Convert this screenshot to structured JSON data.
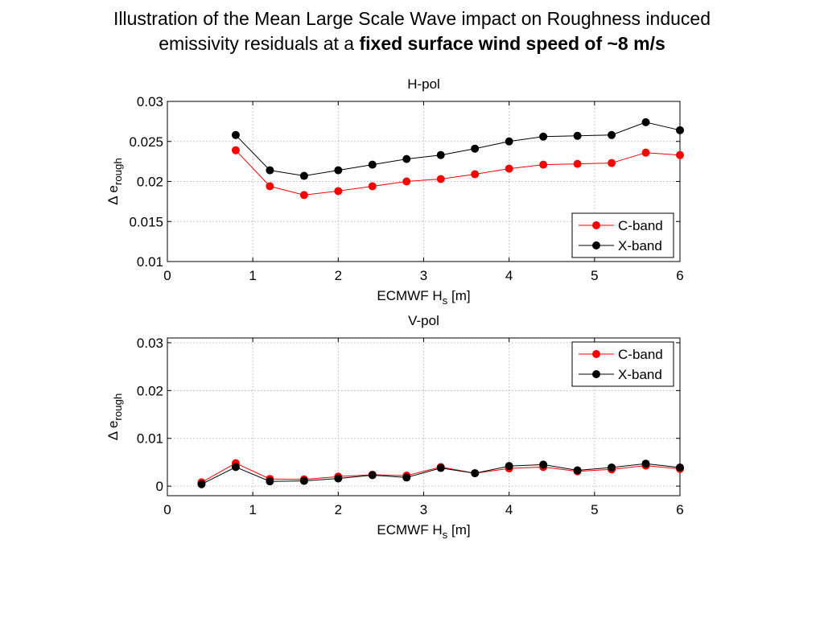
{
  "slide": {
    "title_line1": "Illustration of the Mean Large Scale Wave impact on Roughness induced",
    "title_line2_plain": "emissivity residuals at a ",
    "title_line2_bold": "fixed surface wind speed of ~8 m/s"
  },
  "chart_data": [
    {
      "type": "line",
      "title": "H-pol",
      "xlabel": "ECMWF H_s [m]",
      "ylabel": "Δ e_rough",
      "xlim": [
        0,
        6
      ],
      "ylim": [
        0.01,
        0.03
      ],
      "xticks": [
        0,
        1,
        2,
        3,
        4,
        5,
        6
      ],
      "yticks": [
        0.01,
        0.015,
        0.02,
        0.025,
        0.03
      ],
      "ytick_labels": [
        "0.01",
        "0.015",
        "0.02",
        "0.025",
        "0.03"
      ],
      "grid": true,
      "legend_position": "lower-right",
      "series": [
        {
          "name": "C-band",
          "color": "#ff0000",
          "x": [
            0.8,
            1.2,
            1.6,
            2.0,
            2.4,
            2.8,
            3.2,
            3.6,
            4.0,
            4.4,
            4.8,
            5.2,
            5.6,
            6.0
          ],
          "values": [
            0.0239,
            0.0194,
            0.0183,
            0.0188,
            0.0194,
            0.02,
            0.0203,
            0.0209,
            0.0216,
            0.0221,
            0.0222,
            0.0223,
            0.0236,
            0.0233
          ]
        },
        {
          "name": "X-band",
          "color": "#000000",
          "x": [
            0.8,
            1.2,
            1.6,
            2.0,
            2.4,
            2.8,
            3.2,
            3.6,
            4.0,
            4.4,
            4.8,
            5.2,
            5.6,
            6.0
          ],
          "values": [
            0.0258,
            0.0214,
            0.0207,
            0.0214,
            0.0221,
            0.0228,
            0.0233,
            0.0241,
            0.025,
            0.0256,
            0.0257,
            0.0258,
            0.0274,
            0.0264
          ]
        }
      ]
    },
    {
      "type": "line",
      "title": "V-pol",
      "xlabel": "ECMWF H_s [m]",
      "ylabel": "Δ e_rough",
      "xlim": [
        0,
        6
      ],
      "ylim": [
        -0.002,
        0.031
      ],
      "xticks": [
        0,
        1,
        2,
        3,
        4,
        5,
        6
      ],
      "yticks": [
        0,
        0.01,
        0.02,
        0.03
      ],
      "ytick_labels": [
        "0",
        "0.01",
        "0.02",
        "0.03"
      ],
      "grid": true,
      "legend_position": "top-right",
      "series": [
        {
          "name": "C-band",
          "color": "#ff0000",
          "x": [
            0.4,
            0.8,
            1.2,
            1.6,
            2.0,
            2.4,
            2.8,
            3.2,
            3.6,
            4.0,
            4.4,
            4.8,
            5.2,
            5.6,
            6.0
          ],
          "values": [
            0.0008,
            0.0048,
            0.0015,
            0.0014,
            0.002,
            0.0024,
            0.0022,
            0.004,
            0.0027,
            0.0037,
            0.004,
            0.0031,
            0.0035,
            0.0043,
            0.0036
          ]
        },
        {
          "name": "X-band",
          "color": "#000000",
          "x": [
            0.4,
            0.8,
            1.2,
            1.6,
            2.0,
            2.4,
            2.8,
            3.2,
            3.6,
            4.0,
            4.4,
            4.8,
            5.2,
            5.6,
            6.0
          ],
          "values": [
            0.0004,
            0.004,
            0.001,
            0.0011,
            0.0016,
            0.0023,
            0.0018,
            0.0038,
            0.0027,
            0.0042,
            0.0045,
            0.0033,
            0.0039,
            0.0047,
            0.0039
          ]
        }
      ]
    }
  ]
}
